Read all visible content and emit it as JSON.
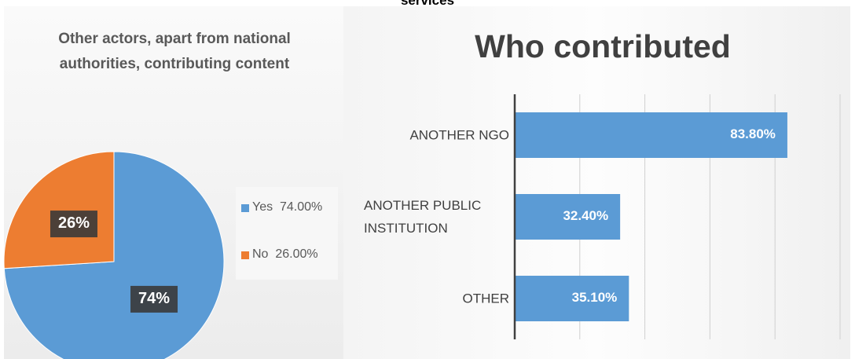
{
  "page_caption": "services",
  "chart_data": [
    {
      "type": "pie",
      "title": "Other actors, apart from national authorities, contributing content",
      "categories": [
        "Yes",
        "No"
      ],
      "values": [
        74,
        26
      ],
      "value_labels": [
        "74%",
        "26%"
      ],
      "legend_labels": [
        "Yes  74.00%",
        "No  26.00%"
      ],
      "colors": [
        "#5b9bd5",
        "#ed7d31"
      ],
      "legend": "right"
    },
    {
      "type": "barh",
      "title": "Who contributed",
      "categories": [
        "ANOTHER NGO",
        "ANOTHER PUBLIC INSTITUTION",
        "OTHER"
      ],
      "values": [
        83.8,
        32.4,
        35.1
      ],
      "value_labels": [
        "83.80%",
        "32.40%",
        "35.10%"
      ],
      "color": "#5b9bd5",
      "xlim": [
        0,
        100
      ],
      "xticks": [
        0,
        20,
        40,
        60,
        80,
        100
      ],
      "grid": true
    }
  ]
}
